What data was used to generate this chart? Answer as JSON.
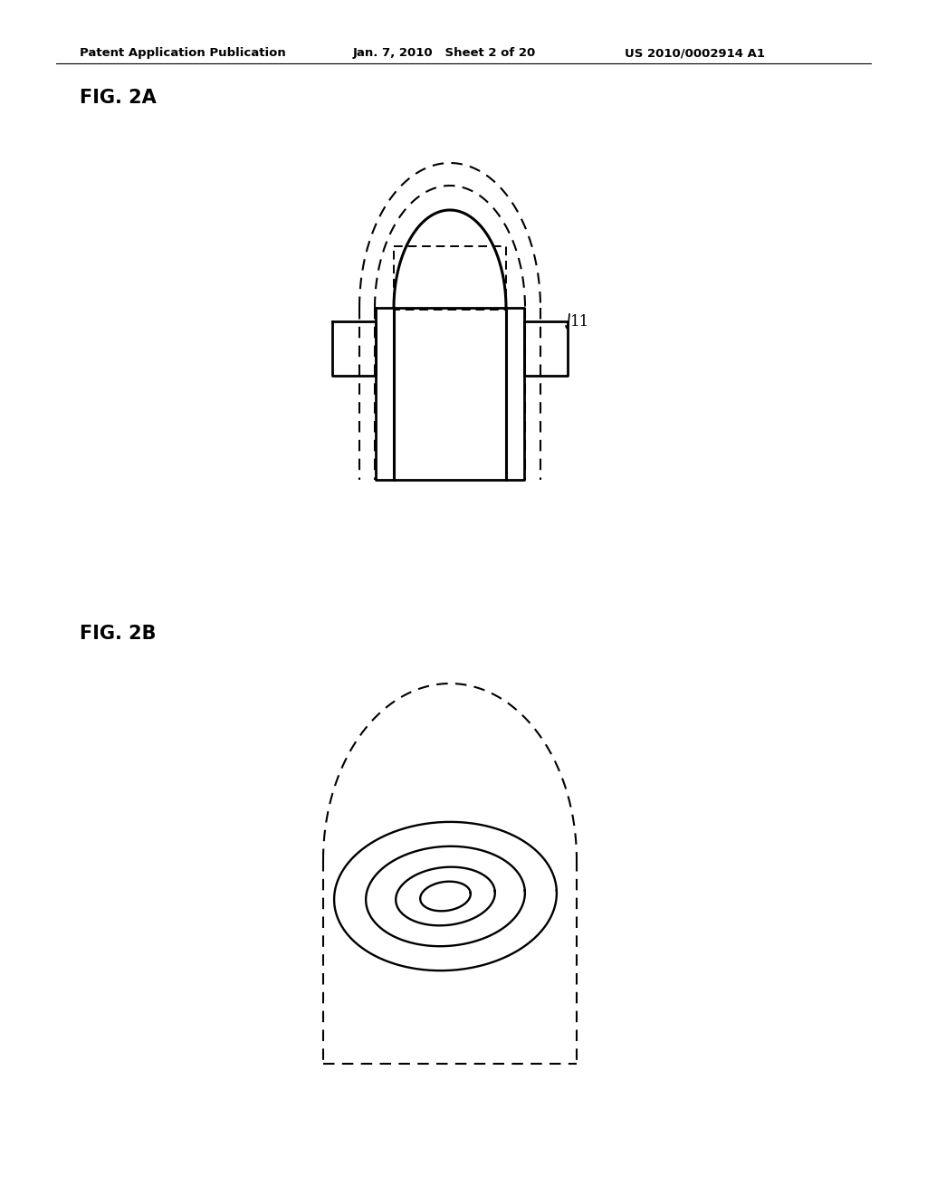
{
  "bg_color": "#ffffff",
  "text_color": "#000000",
  "header_left": "Patent Application Publication",
  "header_mid": "Jan. 7, 2010   Sheet 2 of 20",
  "header_right": "US 2010/0002914 A1",
  "fig2a_label": "FIG. 2A",
  "fig2b_label": "FIG. 2B",
  "label_11": "11"
}
